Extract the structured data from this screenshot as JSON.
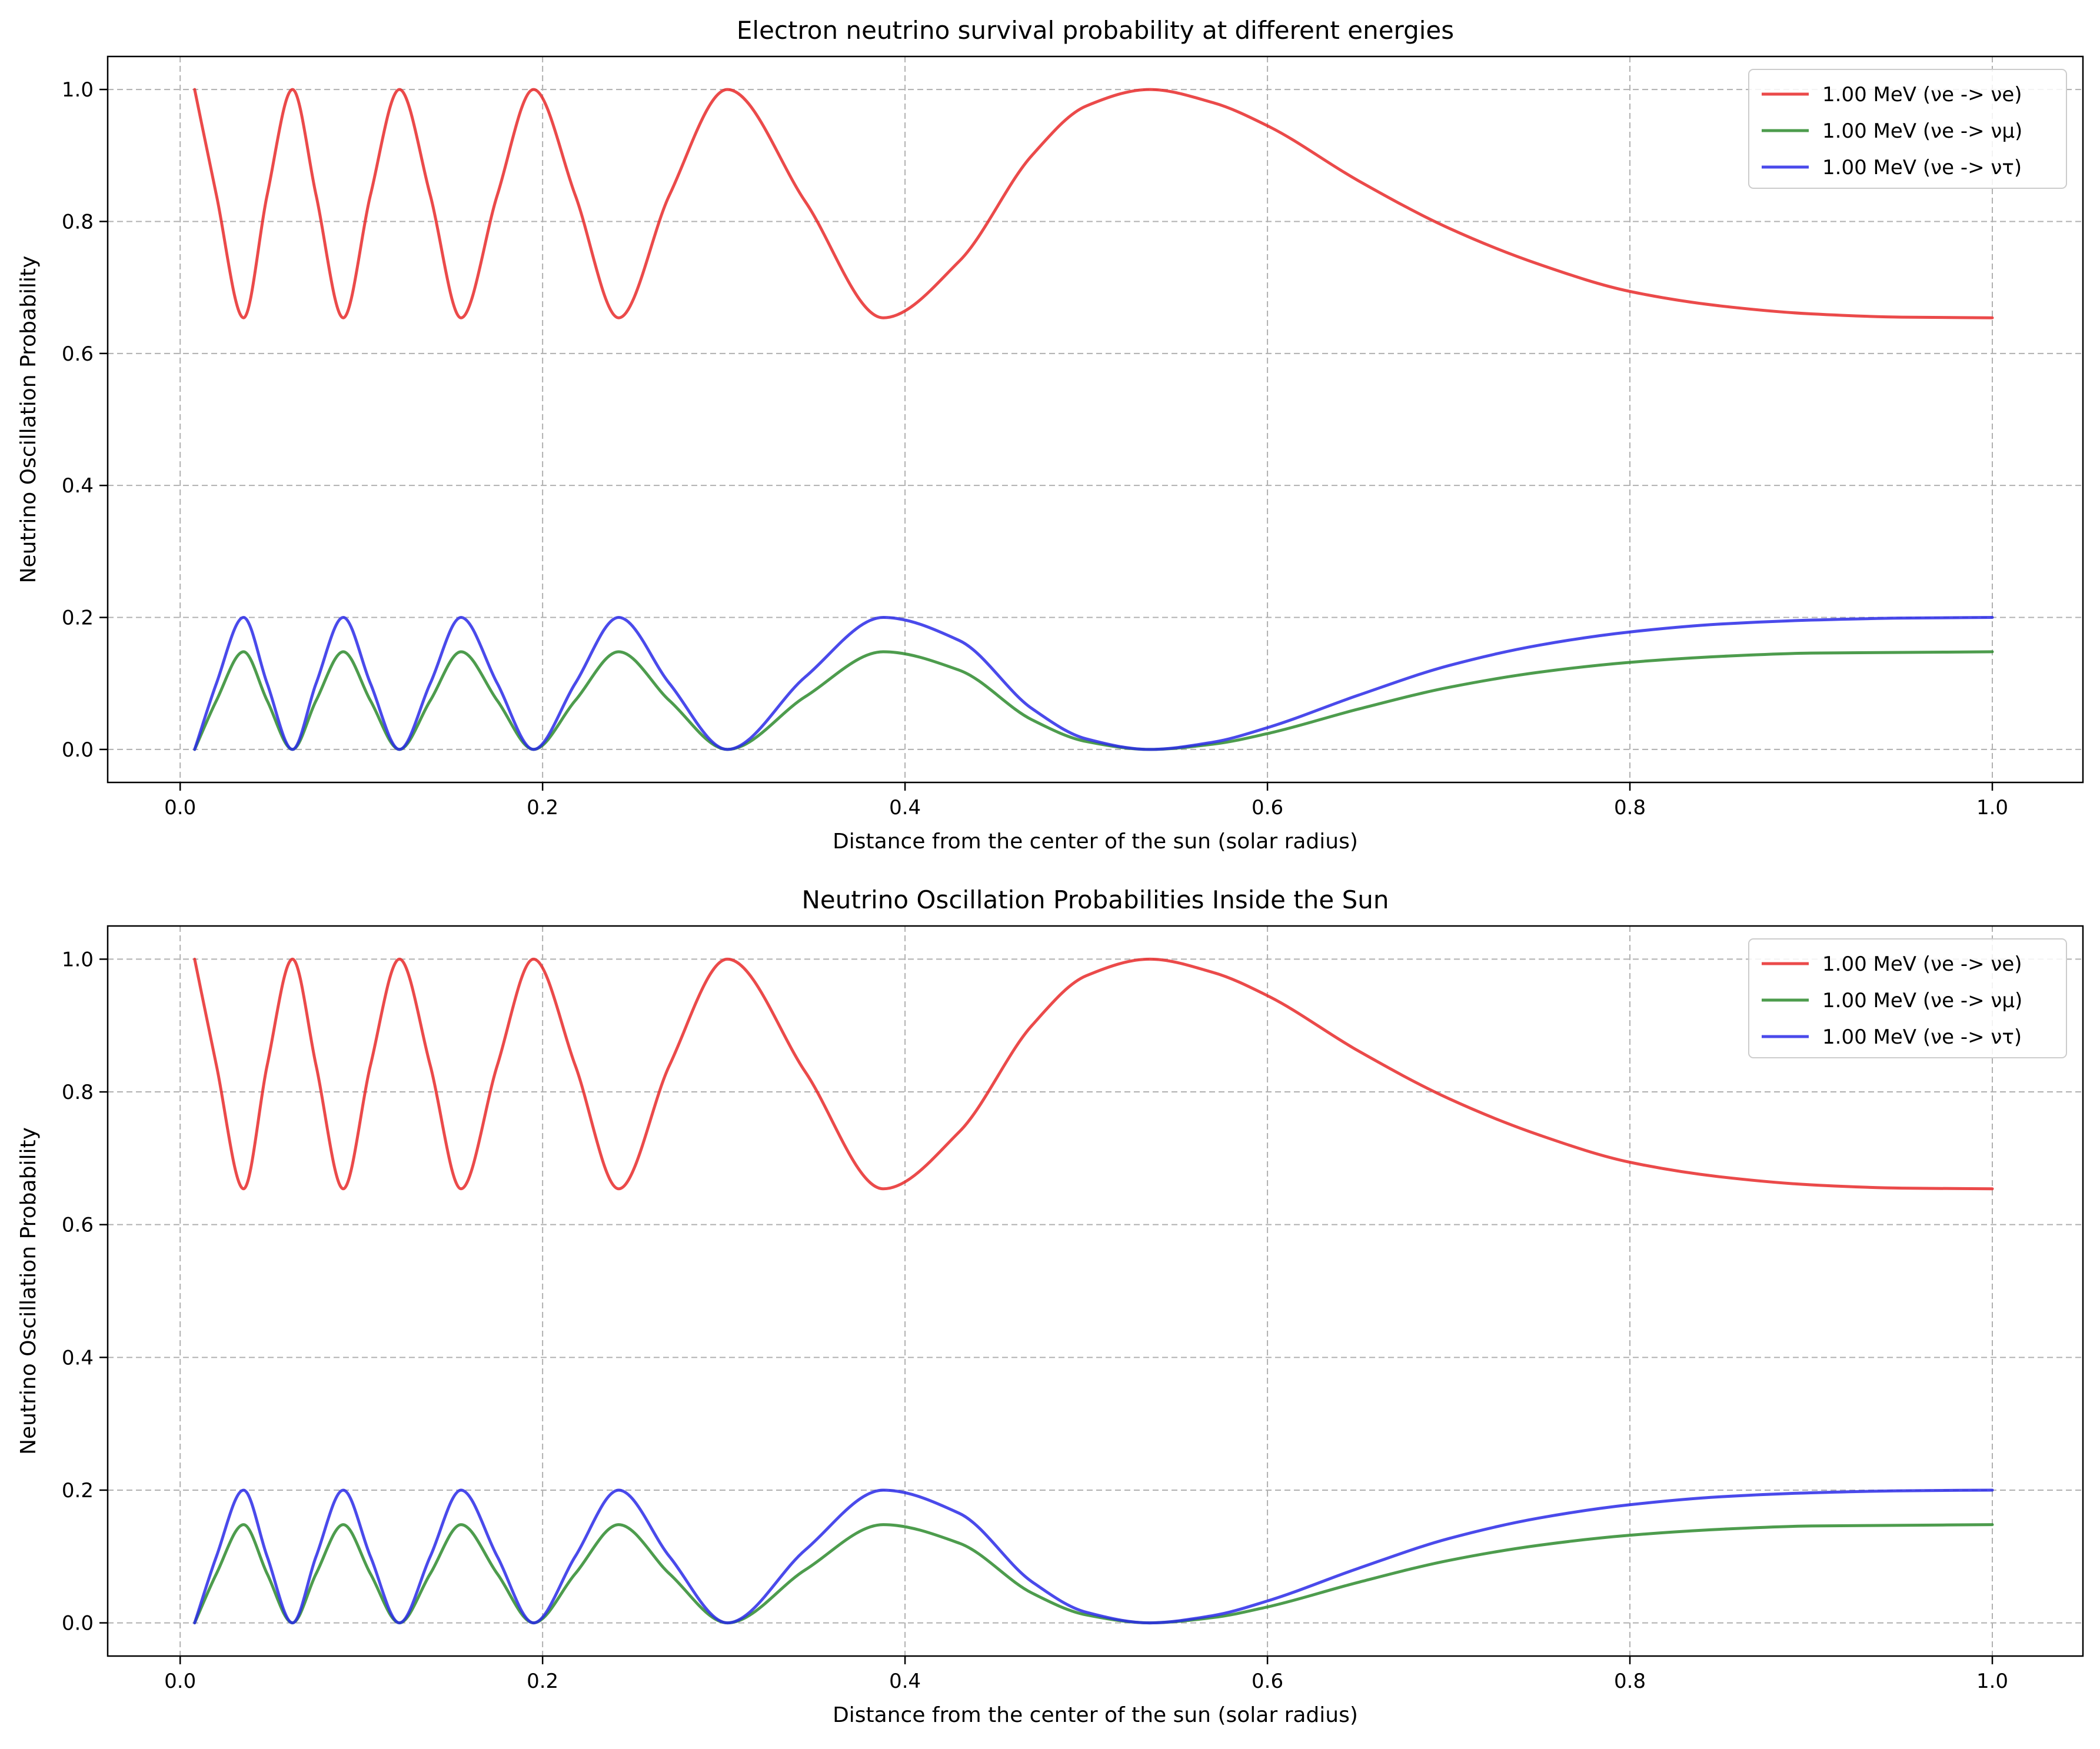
{
  "chart_data": [
    {
      "type": "line",
      "title": "Electron neutrino survival probability at different energies",
      "xlabel": "Distance from the center of the sun (solar radius)",
      "ylabel": "Neutrino Oscillation Probability",
      "xlim": [
        -0.04,
        1.05
      ],
      "ylim": [
        -0.05,
        1.05
      ],
      "xticks": [
        0.0,
        0.2,
        0.4,
        0.6,
        0.8,
        1.0
      ],
      "xtick_labels": [
        "0.0",
        "0.2",
        "0.4",
        "0.6",
        "0.8",
        "1.0"
      ],
      "yticks": [
        0.0,
        0.2,
        0.4,
        0.6,
        0.8,
        1.0
      ],
      "ytick_labels": [
        "0.0",
        "0.2",
        "0.4",
        "0.6",
        "0.8",
        "1.0"
      ],
      "grid": true,
      "legend_position": "upper right",
      "series": [
        {
          "name": "1.00 MeV (νe -> νe)",
          "color": "#e82a2a",
          "x": [
            0.008,
            0.02,
            0.035,
            0.048,
            0.062,
            0.075,
            0.09,
            0.105,
            0.121,
            0.138,
            0.155,
            0.175,
            0.195,
            0.218,
            0.242,
            0.27,
            0.302,
            0.345,
            0.388,
            0.43,
            0.47,
            0.5,
            0.535,
            0.57,
            0.6,
            0.65,
            0.7,
            0.75,
            0.8,
            0.85,
            0.9,
            0.95,
            1.0
          ],
          "y": [
            1.0,
            0.84,
            0.654,
            0.84,
            1.0,
            0.84,
            0.654,
            0.84,
            1.0,
            0.84,
            0.654,
            0.84,
            1.0,
            0.84,
            0.654,
            0.84,
            1.0,
            0.83,
            0.654,
            0.74,
            0.9,
            0.975,
            1.0,
            0.98,
            0.945,
            0.862,
            0.79,
            0.735,
            0.694,
            0.672,
            0.66,
            0.655,
            0.654
          ]
        },
        {
          "name": "1.00 MeV (νe -> νμ)",
          "color": "#2e8b2e",
          "x": [
            0.008,
            0.02,
            0.035,
            0.048,
            0.062,
            0.075,
            0.09,
            0.105,
            0.121,
            0.138,
            0.155,
            0.175,
            0.195,
            0.218,
            0.242,
            0.27,
            0.302,
            0.345,
            0.388,
            0.43,
            0.47,
            0.5,
            0.535,
            0.57,
            0.6,
            0.65,
            0.7,
            0.75,
            0.8,
            0.85,
            0.9,
            0.95,
            1.0
          ],
          "y": [
            0.0,
            0.074,
            0.148,
            0.074,
            0.0,
            0.074,
            0.148,
            0.074,
            0.0,
            0.074,
            0.148,
            0.074,
            0.0,
            0.074,
            0.148,
            0.074,
            0.0,
            0.08,
            0.148,
            0.12,
            0.045,
            0.012,
            0.0,
            0.008,
            0.024,
            0.061,
            0.094,
            0.117,
            0.132,
            0.141,
            0.146,
            0.147,
            0.148
          ]
        },
        {
          "name": "1.00 MeV (νe -> ντ)",
          "color": "#2a2ae8",
          "x": [
            0.008,
            0.02,
            0.035,
            0.048,
            0.062,
            0.075,
            0.09,
            0.105,
            0.121,
            0.138,
            0.155,
            0.175,
            0.195,
            0.218,
            0.242,
            0.27,
            0.302,
            0.345,
            0.388,
            0.43,
            0.47,
            0.5,
            0.535,
            0.57,
            0.6,
            0.65,
            0.7,
            0.75,
            0.8,
            0.85,
            0.9,
            0.95,
            1.0
          ],
          "y": [
            0.0,
            0.1,
            0.2,
            0.1,
            0.0,
            0.1,
            0.2,
            0.1,
            0.0,
            0.1,
            0.2,
            0.1,
            0.0,
            0.1,
            0.2,
            0.1,
            0.0,
            0.11,
            0.2,
            0.165,
            0.062,
            0.016,
            0.0,
            0.011,
            0.033,
            0.082,
            0.127,
            0.158,
            0.178,
            0.19,
            0.196,
            0.199,
            0.2
          ]
        }
      ]
    },
    {
      "type": "line",
      "title": "Neutrino Oscillation Probabilities Inside the Sun",
      "xlabel": "Distance from the center of the sun (solar radius)",
      "ylabel": "Neutrino Oscillation Probability",
      "xlim": [
        -0.04,
        1.05
      ],
      "ylim": [
        -0.05,
        1.05
      ],
      "xticks": [
        0.0,
        0.2,
        0.4,
        0.6,
        0.8,
        1.0
      ],
      "xtick_labels": [
        "0.0",
        "0.2",
        "0.4",
        "0.6",
        "0.8",
        "1.0"
      ],
      "yticks": [
        0.0,
        0.2,
        0.4,
        0.6,
        0.8,
        1.0
      ],
      "ytick_labels": [
        "0.0",
        "0.2",
        "0.4",
        "0.6",
        "0.8",
        "1.0"
      ],
      "grid": true,
      "legend_position": "upper right",
      "series": [
        {
          "name": "1.00 MeV (νe -> νe)",
          "color": "#e82a2a",
          "x": [
            0.008,
            0.02,
            0.035,
            0.048,
            0.062,
            0.075,
            0.09,
            0.105,
            0.121,
            0.138,
            0.155,
            0.175,
            0.195,
            0.218,
            0.242,
            0.27,
            0.302,
            0.345,
            0.388,
            0.43,
            0.47,
            0.5,
            0.535,
            0.57,
            0.6,
            0.65,
            0.7,
            0.75,
            0.8,
            0.85,
            0.9,
            0.95,
            1.0
          ],
          "y": [
            1.0,
            0.84,
            0.654,
            0.84,
            1.0,
            0.84,
            0.654,
            0.84,
            1.0,
            0.84,
            0.654,
            0.84,
            1.0,
            0.84,
            0.654,
            0.84,
            1.0,
            0.83,
            0.654,
            0.74,
            0.9,
            0.975,
            1.0,
            0.98,
            0.945,
            0.862,
            0.79,
            0.735,
            0.694,
            0.672,
            0.66,
            0.655,
            0.654
          ]
        },
        {
          "name": "1.00 MeV (νe -> νμ)",
          "color": "#2e8b2e",
          "x": [
            0.008,
            0.02,
            0.035,
            0.048,
            0.062,
            0.075,
            0.09,
            0.105,
            0.121,
            0.138,
            0.155,
            0.175,
            0.195,
            0.218,
            0.242,
            0.27,
            0.302,
            0.345,
            0.388,
            0.43,
            0.47,
            0.5,
            0.535,
            0.57,
            0.6,
            0.65,
            0.7,
            0.75,
            0.8,
            0.85,
            0.9,
            0.95,
            1.0
          ],
          "y": [
            0.0,
            0.074,
            0.148,
            0.074,
            0.0,
            0.074,
            0.148,
            0.074,
            0.0,
            0.074,
            0.148,
            0.074,
            0.0,
            0.074,
            0.148,
            0.074,
            0.0,
            0.08,
            0.148,
            0.12,
            0.045,
            0.012,
            0.0,
            0.008,
            0.024,
            0.061,
            0.094,
            0.117,
            0.132,
            0.141,
            0.146,
            0.147,
            0.148
          ]
        },
        {
          "name": "1.00 MeV (νe -> ντ)",
          "color": "#2a2ae8",
          "x": [
            0.008,
            0.02,
            0.035,
            0.048,
            0.062,
            0.075,
            0.09,
            0.105,
            0.121,
            0.138,
            0.155,
            0.175,
            0.195,
            0.218,
            0.242,
            0.27,
            0.302,
            0.345,
            0.388,
            0.43,
            0.47,
            0.5,
            0.535,
            0.57,
            0.6,
            0.65,
            0.7,
            0.75,
            0.8,
            0.85,
            0.9,
            0.95,
            1.0
          ],
          "y": [
            0.0,
            0.1,
            0.2,
            0.1,
            0.0,
            0.1,
            0.2,
            0.1,
            0.0,
            0.1,
            0.2,
            0.1,
            0.0,
            0.1,
            0.2,
            0.1,
            0.0,
            0.11,
            0.2,
            0.165,
            0.062,
            0.016,
            0.0,
            0.011,
            0.033,
            0.082,
            0.127,
            0.158,
            0.178,
            0.19,
            0.196,
            0.199,
            0.2
          ]
        }
      ]
    }
  ]
}
